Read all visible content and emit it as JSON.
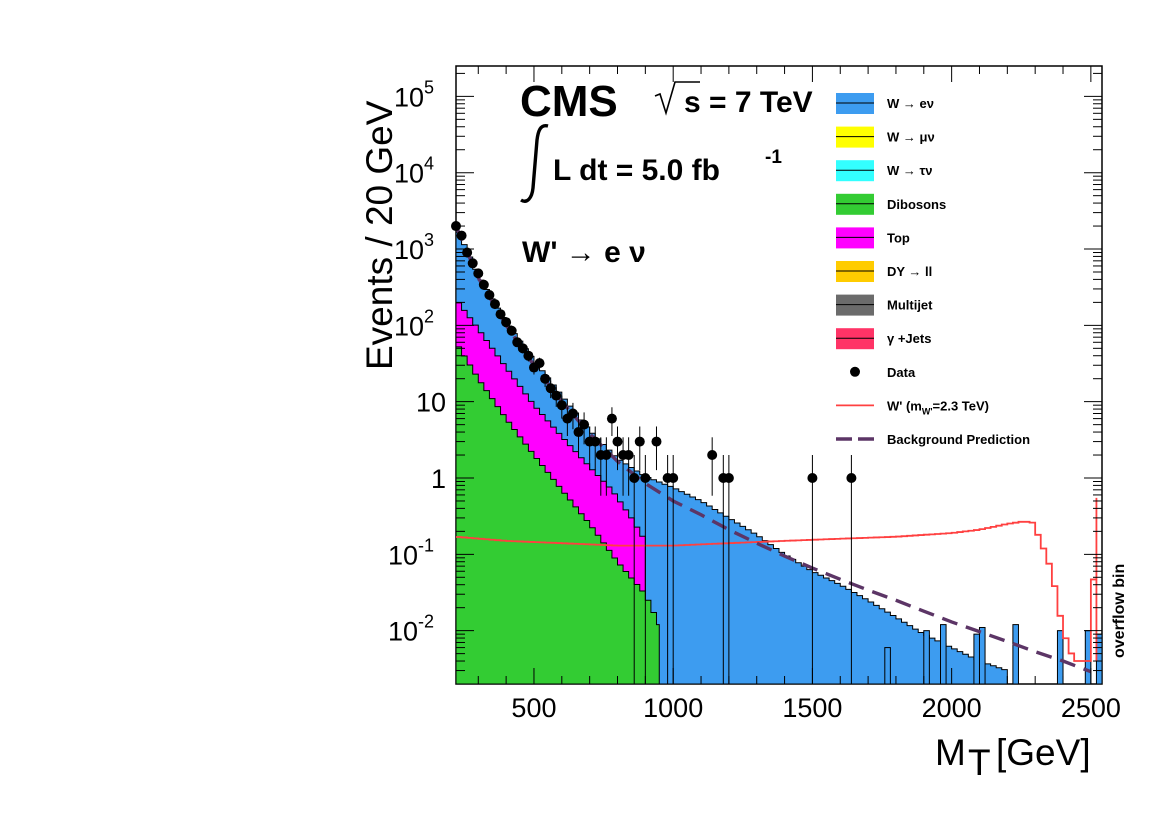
{
  "chart_data": {
    "type": "histogram-stack",
    "title": "CMS",
    "energy_label": "s = 7 TeV",
    "lumi_prefix": "L dt = 5.0 fb",
    "lumi_exp": "-1",
    "channel_label": "W' → e ν",
    "xlabel": "M",
    "xlabel_sub": "T",
    "xlabel_unit": "[GeV]",
    "ylabel": "Events / 20 GeV",
    "overflow_label": "overflow bin",
    "xlim": [
      220,
      2540
    ],
    "ylim": [
      0.002,
      250000
    ],
    "yscale": "log",
    "x_ticks": [
      {
        "value": 500,
        "label": "500"
      },
      {
        "value": 1000,
        "label": "1000"
      },
      {
        "value": 1500,
        "label": "1500"
      },
      {
        "value": 2000,
        "label": "2000"
      },
      {
        "value": 2500,
        "label": "2500"
      }
    ],
    "y_ticks": [
      {
        "value": 0.01,
        "base": "10",
        "exp": "-2"
      },
      {
        "value": 0.1,
        "base": "10",
        "exp": "-1"
      },
      {
        "value": 1,
        "base": "1",
        "exp": ""
      },
      {
        "value": 10,
        "base": "10",
        "exp": ""
      },
      {
        "value": 100,
        "base": "10",
        "exp": "2"
      },
      {
        "value": 1000,
        "base": "10",
        "exp": "3"
      },
      {
        "value": 10000,
        "base": "10",
        "exp": "4"
      },
      {
        "value": 100000,
        "base": "10",
        "exp": "5"
      }
    ],
    "background_colors": {
      "w_to_enu": "#3d9cf0",
      "dy": "#ffcc00",
      "top": "#ff00ff",
      "dibosons": "#33cc33",
      "signal": "#ff4040",
      "prediction": "#5c3566"
    },
    "w_enu_points": [
      [
        220,
        2000
      ],
      [
        300,
        450
      ],
      [
        400,
        110
      ],
      [
        500,
        35
      ],
      [
        600,
        12
      ],
      [
        700,
        4.2
      ],
      [
        800,
        1.8
      ],
      [
        900,
        1.05
      ],
      [
        1000,
        0.75
      ],
      [
        1100,
        0.5
      ],
      [
        1200,
        0.3
      ],
      [
        1300,
        0.18
      ],
      [
        1400,
        0.1
      ],
      [
        1500,
        0.06
      ],
      [
        1600,
        0.04
      ],
      [
        1700,
        0.025
      ],
      [
        1800,
        0.015
      ],
      [
        1900,
        0.009
      ],
      [
        2000,
        0.006
      ],
      [
        2100,
        0.004
      ],
      [
        2200,
        0.003
      ]
    ],
    "top_points": [
      [
        220,
        220
      ],
      [
        300,
        90
      ],
      [
        400,
        28
      ],
      [
        500,
        9
      ],
      [
        600,
        3.5
      ],
      [
        700,
        1.4
      ],
      [
        780,
        0.7
      ],
      [
        850,
        0.3
      ],
      [
        900,
        0.15
      ]
    ],
    "diboson_points": [
      [
        220,
        60
      ],
      [
        300,
        20
      ],
      [
        400,
        6
      ],
      [
        500,
        2
      ],
      [
        600,
        0.7
      ],
      [
        700,
        0.25
      ],
      [
        800,
        0.08
      ],
      [
        900,
        0.03
      ],
      [
        950,
        0.012
      ]
    ],
    "sparse_bins": [
      {
        "x": 1760,
        "y": 0.006
      },
      {
        "x": 1900,
        "y": 0.01
      },
      {
        "x": 1960,
        "y": 0.012
      },
      {
        "x": 2080,
        "y": 0.009
      },
      {
        "x": 2100,
        "y": 0.011
      },
      {
        "x": 2220,
        "y": 0.012
      },
      {
        "x": 2380,
        "y": 0.01
      },
      {
        "x": 2480,
        "y": 0.01
      },
      {
        "x": 2520,
        "y": 0.009
      }
    ],
    "data_points": [
      {
        "x": 220,
        "y": 2000
      },
      {
        "x": 240,
        "y": 1500
      },
      {
        "x": 260,
        "y": 900
      },
      {
        "x": 280,
        "y": 650
      },
      {
        "x": 300,
        "y": 480
      },
      {
        "x": 320,
        "y": 340
      },
      {
        "x": 340,
        "y": 250
      },
      {
        "x": 360,
        "y": 190
      },
      {
        "x": 380,
        "y": 140
      },
      {
        "x": 400,
        "y": 110
      },
      {
        "x": 420,
        "y": 85
      },
      {
        "x": 440,
        "y": 60
      },
      {
        "x": 460,
        "y": 50
      },
      {
        "x": 480,
        "y": 40
      },
      {
        "x": 500,
        "y": 28
      },
      {
        "x": 520,
        "y": 32
      },
      {
        "x": 540,
        "y": 20
      },
      {
        "x": 560,
        "y": 15
      },
      {
        "x": 580,
        "y": 12
      },
      {
        "x": 600,
        "y": 9
      },
      {
        "x": 620,
        "y": 6
      },
      {
        "x": 640,
        "y": 7
      },
      {
        "x": 660,
        "y": 4
      },
      {
        "x": 680,
        "y": 5
      },
      {
        "x": 700,
        "y": 3
      },
      {
        "x": 720,
        "y": 3
      },
      {
        "x": 740,
        "y": 2
      },
      {
        "x": 760,
        "y": 2
      },
      {
        "x": 780,
        "y": 6
      },
      {
        "x": 800,
        "y": 3
      },
      {
        "x": 820,
        "y": 2
      },
      {
        "x": 840,
        "y": 2
      },
      {
        "x": 860,
        "y": 1
      },
      {
        "x": 880,
        "y": 3
      },
      {
        "x": 900,
        "y": 1
      },
      {
        "x": 940,
        "y": 3
      },
      {
        "x": 980,
        "y": 1
      },
      {
        "x": 1000,
        "y": 1
      },
      {
        "x": 1140,
        "y": 2
      },
      {
        "x": 1180,
        "y": 1
      },
      {
        "x": 1200,
        "y": 1
      },
      {
        "x": 1500,
        "y": 1
      },
      {
        "x": 1640,
        "y": 1
      }
    ],
    "signal_w_prime": {
      "mass_TeV": 2.3,
      "points": [
        [
          220,
          0.17
        ],
        [
          400,
          0.15
        ],
        [
          600,
          0.14
        ],
        [
          800,
          0.13
        ],
        [
          1000,
          0.13
        ],
        [
          1200,
          0.14
        ],
        [
          1400,
          0.15
        ],
        [
          1600,
          0.16
        ],
        [
          1800,
          0.17
        ],
        [
          2000,
          0.19
        ],
        [
          2100,
          0.21
        ],
        [
          2200,
          0.25
        ],
        [
          2260,
          0.27
        ],
        [
          2290,
          0.26
        ],
        [
          2320,
          0.15
        ],
        [
          2360,
          0.06
        ],
        [
          2400,
          0.01
        ],
        [
          2440,
          0.004
        ],
        [
          2500,
          0.004
        ],
        [
          2520,
          0.55
        ]
      ]
    },
    "prediction_points": [
      [
        220,
        2000
      ],
      [
        300,
        420
      ],
      [
        400,
        100
      ],
      [
        500,
        30
      ],
      [
        600,
        10
      ],
      [
        700,
        3.8
      ],
      [
        800,
        1.65
      ],
      [
        900,
        0.85
      ],
      [
        1000,
        0.5
      ],
      [
        1100,
        0.33
      ],
      [
        1200,
        0.21
      ],
      [
        1300,
        0.14
      ],
      [
        1400,
        0.095
      ],
      [
        1500,
        0.066
      ],
      [
        1600,
        0.047
      ],
      [
        1700,
        0.034
      ],
      [
        1800,
        0.025
      ],
      [
        1900,
        0.018
      ],
      [
        2000,
        0.013
      ],
      [
        2100,
        0.0097
      ],
      [
        2200,
        0.0072
      ],
      [
        2300,
        0.0053
      ],
      [
        2400,
        0.004
      ],
      [
        2500,
        0.0029
      ]
    ],
    "legend": [
      {
        "label": "W → eν",
        "kind": "fill",
        "color": "#3d9cf0"
      },
      {
        "label": "W → μν",
        "kind": "fill",
        "color": "#ffff00"
      },
      {
        "label": "W → τν",
        "kind": "fill",
        "color": "#33ffff"
      },
      {
        "label": "Dibosons",
        "kind": "fill",
        "color": "#33cc33"
      },
      {
        "label": "Top",
        "kind": "fill",
        "color": "#ff00ff"
      },
      {
        "label": "DY → ll",
        "kind": "fill",
        "color": "#ffcc00"
      },
      {
        "label": "Multijet",
        "kind": "fill",
        "color": "#6b6b6b"
      },
      {
        "label": "γ +Jets",
        "kind": "fill",
        "color": "#ff3366"
      },
      {
        "label": "Data",
        "kind": "marker",
        "color": "#000000"
      },
      {
        "label": "W' (m",
        "sub": "W'",
        "suffix": "=2.3 TeV)",
        "kind": "line",
        "color": "#ff4040"
      },
      {
        "label": "Background Prediction",
        "kind": "dash",
        "color": "#5c3566"
      }
    ]
  }
}
